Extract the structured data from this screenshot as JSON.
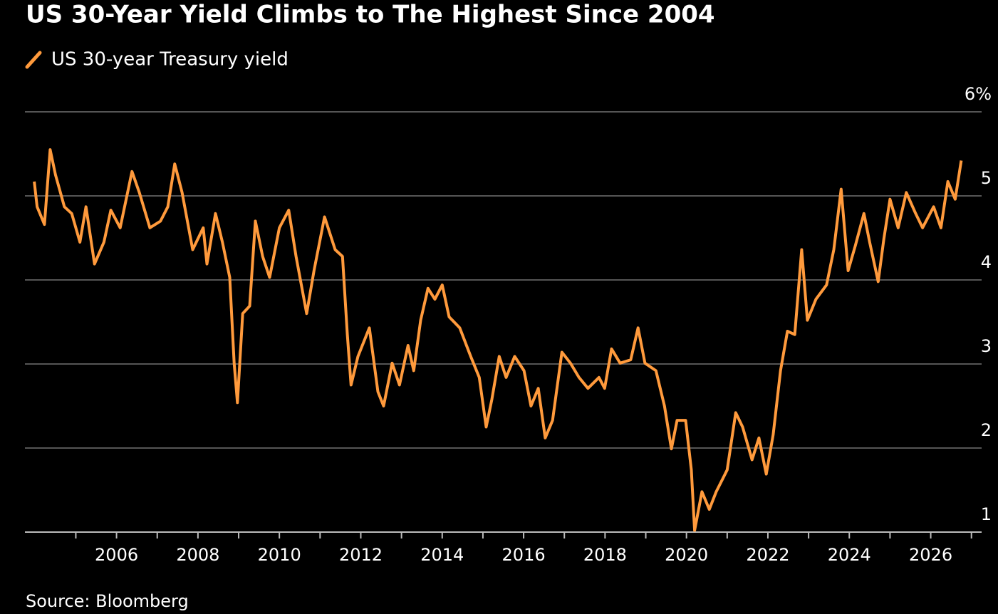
{
  "chart_data": {
    "type": "line",
    "title": "US 30-Year Yield Climbs to The Highest Since 2004",
    "source": "Source: Bloomberg",
    "legend": "top-left",
    "grid": true,
    "xlim": [
      2003.75,
      2027.25
    ],
    "xticks": [
      2006,
      2008,
      2010,
      2012,
      2014,
      2016,
      2018,
      2020,
      2022,
      2024,
      2026
    ],
    "xminorticks": [
      2005,
      2007,
      2009,
      2011,
      2013,
      2015,
      2017,
      2019,
      2021,
      2023,
      2025,
      2027
    ],
    "ylim": [
      1,
      6
    ],
    "yticks": [
      1,
      2,
      3,
      4,
      5,
      {
        "value": 6,
        "label": "6%"
      }
    ],
    "x": [
      2003.98,
      2004.05,
      2004.23,
      2004.37,
      2004.5,
      2004.72,
      2004.9,
      2005.1,
      2005.25,
      2005.46,
      2005.69,
      2005.86,
      2006.09,
      2006.38,
      2006.56,
      2006.82,
      2007.08,
      2007.26,
      2007.43,
      2007.61,
      2007.87,
      2008.13,
      2008.22,
      2008.43,
      2008.6,
      2008.78,
      2008.89,
      2008.97,
      2009.1,
      2009.27,
      2009.41,
      2009.59,
      2009.76,
      2010.0,
      2010.23,
      2010.41,
      2010.67,
      2010.85,
      2011.11,
      2011.37,
      2011.55,
      2011.67,
      2011.76,
      2011.93,
      2012.21,
      2012.42,
      2012.56,
      2012.77,
      2012.95,
      2013.16,
      2013.3,
      2013.47,
      2013.65,
      2013.82,
      2014.0,
      2014.17,
      2014.43,
      2014.7,
      2014.91,
      2015.08,
      2015.22,
      2015.4,
      2015.57,
      2015.78,
      2016.01,
      2016.18,
      2016.36,
      2016.53,
      2016.71,
      2016.94,
      2017.15,
      2017.36,
      2017.58,
      2017.85,
      2017.99,
      2018.16,
      2018.37,
      2018.63,
      2018.81,
      2018.98,
      2019.25,
      2019.46,
      2019.63,
      2019.77,
      2019.98,
      2020.12,
      2020.2,
      2020.38,
      2020.56,
      2020.73,
      2021.0,
      2021.21,
      2021.38,
      2021.61,
      2021.78,
      2021.96,
      2022.13,
      2022.31,
      2022.48,
      2022.66,
      2022.83,
      2022.97,
      2023.18,
      2023.44,
      2023.62,
      2023.8,
      2023.97,
      2024.15,
      2024.36,
      2024.5,
      2024.71,
      2024.85,
      2025.0,
      2025.2,
      2025.4,
      2025.63,
      2025.8,
      2026.07,
      2026.25,
      2026.42,
      2026.6,
      2026.75
    ],
    "series": [
      {
        "name": "US 30-year Treasury yield",
        "color": "#ff9a3c",
        "values": [
          5.17,
          4.87,
          4.66,
          5.55,
          5.25,
          4.87,
          4.79,
          4.45,
          4.87,
          4.19,
          4.45,
          4.83,
          4.62,
          5.29,
          5.04,
          4.62,
          4.7,
          4.87,
          5.38,
          5.04,
          4.36,
          4.62,
          4.19,
          4.79,
          4.45,
          4.03,
          3.01,
          2.54,
          3.6,
          3.69,
          4.7,
          4.28,
          4.03,
          4.62,
          4.83,
          4.28,
          3.6,
          4.11,
          4.75,
          4.36,
          4.28,
          3.35,
          2.75,
          3.09,
          3.43,
          2.67,
          2.5,
          3.01,
          2.75,
          3.22,
          2.92,
          3.52,
          3.9,
          3.77,
          3.94,
          3.56,
          3.43,
          3.09,
          2.84,
          2.25,
          2.58,
          3.09,
          2.84,
          3.09,
          2.92,
          2.5,
          2.71,
          2.12,
          2.33,
          3.14,
          3.01,
          2.84,
          2.71,
          2.84,
          2.71,
          3.18,
          3.01,
          3.05,
          3.43,
          3.01,
          2.92,
          2.5,
          1.99,
          2.33,
          2.33,
          1.74,
          1.02,
          1.48,
          1.27,
          1.48,
          1.74,
          2.42,
          2.25,
          1.86,
          2.12,
          1.69,
          2.16,
          2.92,
          3.39,
          3.35,
          4.36,
          3.52,
          3.77,
          3.94,
          4.36,
          5.08,
          4.11,
          4.41,
          4.79,
          4.45,
          3.98,
          4.49,
          4.96,
          4.62,
          5.04,
          4.79,
          4.62,
          4.87,
          4.62,
          5.17,
          4.96,
          5.42
        ]
      }
    ]
  }
}
